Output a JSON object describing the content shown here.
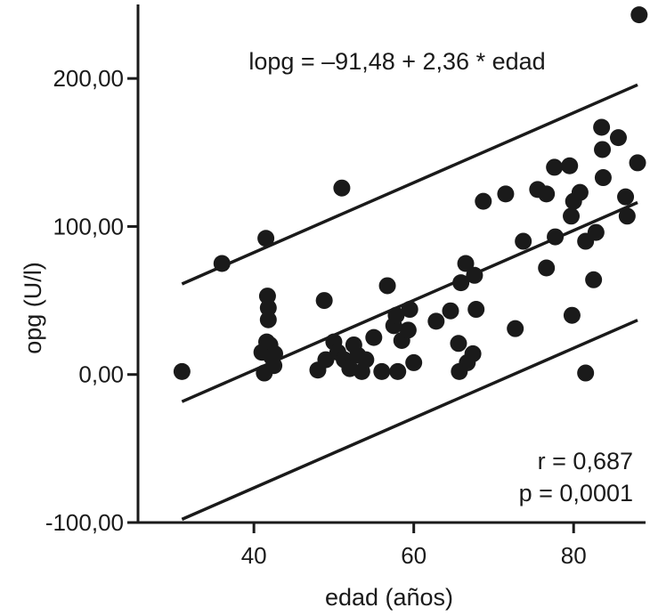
{
  "chart_data": {
    "type": "scatter",
    "title": "",
    "xlabel": "edad (años)",
    "ylabel": "opg (U/l)",
    "xlim": [
      25.5,
      89
    ],
    "ylim": [
      -100,
      250
    ],
    "x_ticks": [
      40,
      60,
      80
    ],
    "x_tick_labels": [
      "40",
      "60",
      "80"
    ],
    "y_ticks": [
      -100,
      0,
      100,
      200
    ],
    "y_tick_labels": [
      "-100,00",
      "0,00",
      "100,00",
      "200,00"
    ],
    "grid": false,
    "legend": "none",
    "point_color": "#1a1a1a",
    "regression": {
      "intercept": -91.48,
      "slope": 2.36,
      "x_range": [
        31,
        88
      ]
    },
    "confidence_offset": 79.5,
    "annotations": {
      "equation": "lopg = –91,48 + 2,36 * edad",
      "r": "r = 0,687",
      "p": "p = 0,0001"
    },
    "points": [
      {
        "x": 31,
        "y": 2
      },
      {
        "x": 36,
        "y": 75
      },
      {
        "x": 41,
        "y": 15
      },
      {
        "x": 41.3,
        "y": 1
      },
      {
        "x": 41.5,
        "y": 92
      },
      {
        "x": 41.7,
        "y": 53
      },
      {
        "x": 41.8,
        "y": 45
      },
      {
        "x": 41.8,
        "y": 37
      },
      {
        "x": 41.6,
        "y": 22
      },
      {
        "x": 42,
        "y": 20
      },
      {
        "x": 42.2,
        "y": 12
      },
      {
        "x": 42.5,
        "y": 6
      },
      {
        "x": 42.6,
        "y": 14
      },
      {
        "x": 48,
        "y": 3
      },
      {
        "x": 48.8,
        "y": 50
      },
      {
        "x": 49,
        "y": 10
      },
      {
        "x": 50,
        "y": 22
      },
      {
        "x": 50.5,
        "y": 15
      },
      {
        "x": 51,
        "y": 126
      },
      {
        "x": 51.3,
        "y": 10
      },
      {
        "x": 52,
        "y": 4
      },
      {
        "x": 52.5,
        "y": 20
      },
      {
        "x": 53,
        "y": 13
      },
      {
        "x": 53.5,
        "y": 2
      },
      {
        "x": 54,
        "y": 10
      },
      {
        "x": 55,
        "y": 25
      },
      {
        "x": 56,
        "y": 2
      },
      {
        "x": 56.7,
        "y": 60
      },
      {
        "x": 57.5,
        "y": 33
      },
      {
        "x": 57.8,
        "y": 40
      },
      {
        "x": 58,
        "y": 2
      },
      {
        "x": 58.5,
        "y": 23
      },
      {
        "x": 59.3,
        "y": 30
      },
      {
        "x": 59.5,
        "y": 44
      },
      {
        "x": 60,
        "y": 8
      },
      {
        "x": 62.8,
        "y": 36
      },
      {
        "x": 64.6,
        "y": 43
      },
      {
        "x": 65.6,
        "y": 21
      },
      {
        "x": 65.7,
        "y": 2
      },
      {
        "x": 65.9,
        "y": 62
      },
      {
        "x": 66.5,
        "y": 75
      },
      {
        "x": 66.7,
        "y": 8
      },
      {
        "x": 67.4,
        "y": 14
      },
      {
        "x": 67.6,
        "y": 67
      },
      {
        "x": 67.8,
        "y": 44
      },
      {
        "x": 68.7,
        "y": 117
      },
      {
        "x": 71.5,
        "y": 122
      },
      {
        "x": 72.7,
        "y": 31
      },
      {
        "x": 73.7,
        "y": 90
      },
      {
        "x": 75.5,
        "y": 125
      },
      {
        "x": 76.6,
        "y": 122
      },
      {
        "x": 76.6,
        "y": 72
      },
      {
        "x": 77.6,
        "y": 140
      },
      {
        "x": 77.7,
        "y": 93
      },
      {
        "x": 79.5,
        "y": 141
      },
      {
        "x": 79.7,
        "y": 107
      },
      {
        "x": 79.8,
        "y": 40
      },
      {
        "x": 80,
        "y": 117
      },
      {
        "x": 80.8,
        "y": 123
      },
      {
        "x": 81.5,
        "y": 90
      },
      {
        "x": 81.5,
        "y": 1
      },
      {
        "x": 82.5,
        "y": 64
      },
      {
        "x": 82.8,
        "y": 96
      },
      {
        "x": 83.5,
        "y": 167
      },
      {
        "x": 83.6,
        "y": 152
      },
      {
        "x": 83.7,
        "y": 133
      },
      {
        "x": 85.6,
        "y": 160
      },
      {
        "x": 86.5,
        "y": 120
      },
      {
        "x": 86.7,
        "y": 107
      },
      {
        "x": 88,
        "y": 143
      },
      {
        "x": 88.2,
        "y": 243
      }
    ]
  }
}
